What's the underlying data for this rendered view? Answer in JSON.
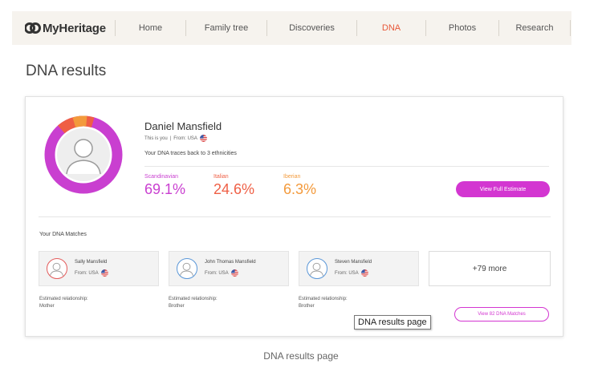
{
  "nav": {
    "logo_text": "MyHeritage",
    "items": [
      "Home",
      "Family tree",
      "Discoveries",
      "DNA",
      "Photos",
      "Research"
    ],
    "active": "DNA"
  },
  "page_title": "DNA results",
  "profile": {
    "name": "Daniel Mansfield",
    "this_is_you": "This is you",
    "from": "From: USA",
    "traces": "Your DNA traces back to 3 ethnicities"
  },
  "ethnicities": [
    {
      "label": "Scandinavian",
      "percent": "69.1%",
      "color": "#c93fd0"
    },
    {
      "label": "Italian",
      "percent": "24.6%",
      "color": "#ef5f45"
    },
    {
      "label": "Iberian",
      "percent": "6.3%",
      "color": "#f39a3c"
    }
  ],
  "view_full_estimate": "View Full Estimate",
  "matches_title": "Your DNA Matches",
  "matches": [
    {
      "name": "Sally Mansfield",
      "from": "From: USA",
      "relationship_label": "Estimated relationship:",
      "relationship": "Mother",
      "avatar_color": "#e35b5b"
    },
    {
      "name": "John Thomas Mansfield",
      "from": "From: USA",
      "relationship_label": "Estimated relationship:",
      "relationship": "Brother",
      "avatar_color": "#5a97d8"
    },
    {
      "name": "Steven Mansfield",
      "from": "From: USA",
      "relationship_label": "Estimated relationship:",
      "relationship": "Brother",
      "avatar_color": "#5a97d8"
    }
  ],
  "more_label": "+79 more",
  "view_matches": "View 82 DNA Matches",
  "tooltip": "DNA results page",
  "caption": "DNA results page",
  "colors": {
    "accent": "#d336d1",
    "nav_active": "#e8593a"
  }
}
